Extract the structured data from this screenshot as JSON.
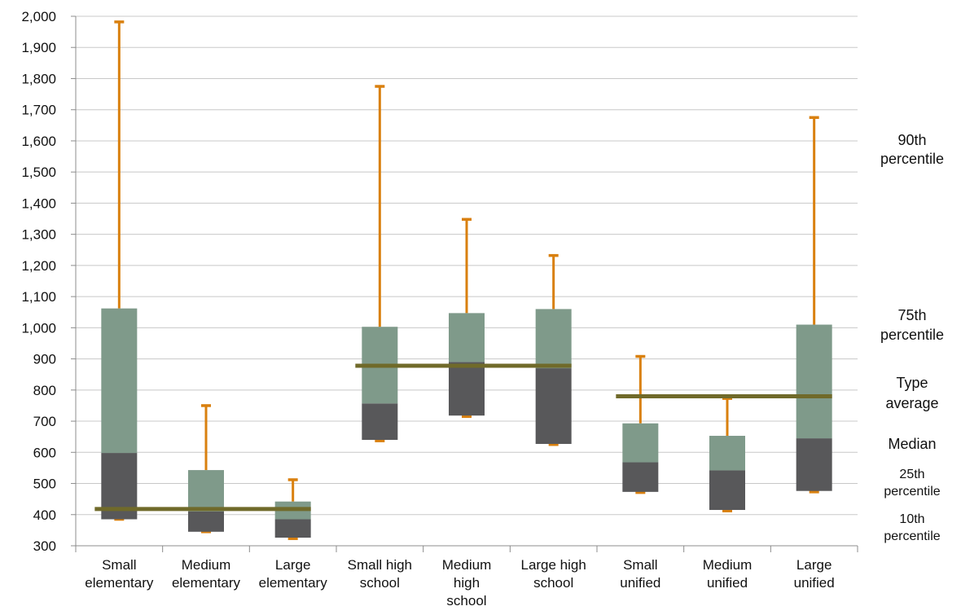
{
  "chart_data": {
    "type": "box",
    "ylim": [
      300,
      2000
    ],
    "ytick_step": 100,
    "grid": true,
    "categories": [
      [
        "Small",
        "elementary"
      ],
      [
        "Medium",
        "elementary"
      ],
      [
        "Large",
        "elementary"
      ],
      [
        "Small high",
        "school"
      ],
      [
        "Medium",
        "high",
        "school"
      ],
      [
        "Large high",
        "school"
      ],
      [
        "Small",
        "unified"
      ],
      [
        "Medium",
        "unified"
      ],
      [
        "Large",
        "unified"
      ]
    ],
    "boxes": [
      {
        "p10": 385,
        "p25": 385,
        "median": 598,
        "p75": 1062,
        "p90": 1982
      },
      {
        "p10": 345,
        "p25": 345,
        "median": 410,
        "p75": 543,
        "p90": 750
      },
      {
        "p10": 323,
        "p25": 326,
        "median": 385,
        "p75": 442,
        "p90": 512
      },
      {
        "p10": 637,
        "p25": 640,
        "median": 757,
        "p75": 1003,
        "p90": 1775
      },
      {
        "p10": 715,
        "p25": 718,
        "median": 890,
        "p75": 1047,
        "p90": 1348
      },
      {
        "p10": 625,
        "p25": 627,
        "median": 870,
        "p75": 1060,
        "p90": 1232
      },
      {
        "p10": 471,
        "p25": 473,
        "median": 568,
        "p75": 693,
        "p90": 908
      },
      {
        "p10": 412,
        "p25": 415,
        "median": 542,
        "p75": 653,
        "p90": 773
      },
      {
        "p10": 473,
        "p25": 476,
        "median": 645,
        "p75": 1010,
        "p90": 1675
      }
    ],
    "type_averages": [
      {
        "from": 0,
        "to": 2,
        "value": 418
      },
      {
        "from": 3,
        "to": 5,
        "value": 878
      },
      {
        "from": 6,
        "to": 8,
        "value": 780
      }
    ],
    "legend": {
      "p90": [
        "90th",
        "percentile"
      ],
      "p75": [
        "75th",
        "percentile"
      ],
      "type_average": [
        "Type",
        "average"
      ],
      "median": [
        "Median"
      ],
      "p25": [
        "25th",
        "percentile"
      ],
      "p10": [
        "10th",
        "percentile"
      ]
    },
    "colors": {
      "upper_box": "#7f9a8a",
      "lower_box": "#58585a",
      "whisker": "#d9800f",
      "average_line": "#706a2a",
      "grid": "#c8c8c8",
      "axis": "#8c8c8c"
    }
  }
}
